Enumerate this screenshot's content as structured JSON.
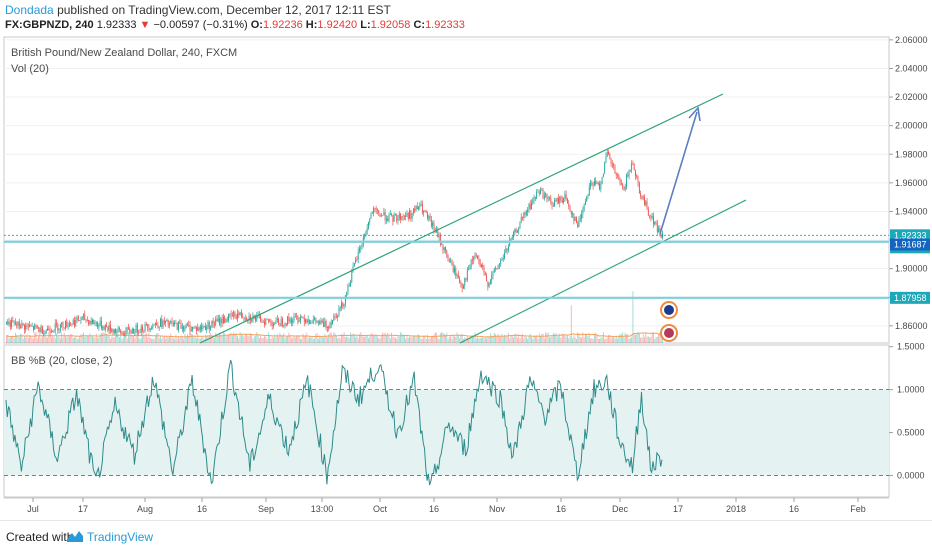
{
  "header": {
    "author": "Dondada",
    "published_text": "published on TradingView.com, December 12, 2017 12:11 EST",
    "symbol": "FX:GBPNZD, 240",
    "last": "1.92333",
    "change": "−0.00597 (−0.31%)",
    "o_label": "O:",
    "o_value": "1.92236",
    "h_label": "H:",
    "h_value": "1.92420",
    "l_label": "L:",
    "l_value": "1.92058",
    "c_label": "C:",
    "c_value": "1.92333"
  },
  "main_pane": {
    "title": "British Pound/New Zealand Dollar, 240, FXCM",
    "vol_label": "Vol (20)"
  },
  "indicator_pane": {
    "title": "BB %B (20, close, 2)"
  },
  "footer": {
    "created_with": "Created with",
    "brand": "TradingView"
  },
  "colors": {
    "up": "#26a69a",
    "down": "#ef5350",
    "channel": "#2ea37a",
    "hline": "#7fcfdc",
    "arrow": "#5b7fc2",
    "bb_line": "#2e8b8b",
    "bb_fill": "#e4f3f1",
    "tag": "#1ba8b8",
    "tag_alt": "#1565c0",
    "brand": "#2a9ad6"
  },
  "chart_data": [
    {
      "type": "candlestick",
      "title": "British Pound/New Zealand Dollar, 240, FXCM",
      "x_ticks": [
        "Jul",
        "17",
        "Aug",
        "16",
        "Sep",
        "13:00",
        "Oct",
        "16",
        "Nov",
        "16",
        "Dec",
        "17",
        "2018",
        "16",
        "Feb"
      ],
      "y_ticks": [
        "1.86000",
        "1.88000",
        "1.90000",
        "1.92000",
        "1.94000",
        "1.96000",
        "1.98000",
        "2.00000",
        "2.02000",
        "2.04000",
        "2.06000"
      ],
      "ylim": [
        1.848,
        2.062
      ],
      "price_tags": [
        "1.92333",
        "48:24",
        "1.91687",
        "1.87958"
      ],
      "horizontal_levels": [
        1.9188,
        1.8796
      ],
      "price_anchors": [
        [
          0,
          1.862
        ],
        [
          30,
          1.857
        ],
        [
          60,
          1.865
        ],
        [
          90,
          1.855
        ],
        [
          120,
          1.862
        ],
        [
          150,
          1.858
        ],
        [
          180,
          1.868
        ],
        [
          210,
          1.862
        ],
        [
          230,
          1.866
        ],
        [
          250,
          1.86
        ],
        [
          262,
          1.875
        ],
        [
          272,
          1.905
        ],
        [
          285,
          1.94
        ],
        [
          300,
          1.935
        ],
        [
          315,
          1.938
        ],
        [
          322,
          1.944
        ],
        [
          335,
          1.925
        ],
        [
          345,
          1.905
        ],
        [
          355,
          1.888
        ],
        [
          365,
          1.91
        ],
        [
          375,
          1.89
        ],
        [
          385,
          1.905
        ],
        [
          400,
          1.932
        ],
        [
          415,
          1.955
        ],
        [
          425,
          1.945
        ],
        [
          435,
          1.95
        ],
        [
          445,
          1.93
        ],
        [
          455,
          1.96
        ],
        [
          462,
          1.958
        ],
        [
          468,
          1.98
        ],
        [
          475,
          1.965
        ],
        [
          480,
          1.955
        ],
        [
          488,
          1.975
        ],
        [
          493,
          1.955
        ],
        [
          500,
          1.94
        ],
        [
          510,
          1.923
        ]
      ],
      "volume_spikes": [
        [
          440,
          2.4
        ],
        [
          488,
          3.3
        ]
      ],
      "event_icons": [
        "flag-icon",
        "flag-icon"
      ]
    },
    {
      "type": "line",
      "title": "BB %B (20, close, 2)",
      "y_ticks": [
        "0.0000",
        "0.5000",
        "1.0000",
        "1.5000"
      ],
      "ylim": [
        -0.25,
        1.52
      ],
      "dashed_levels": [
        0.0,
        1.0
      ],
      "anchors": [
        [
          0,
          0.85
        ],
        [
          12,
          0.1
        ],
        [
          25,
          1.05
        ],
        [
          40,
          0.2
        ],
        [
          55,
          0.95
        ],
        [
          70,
          -0.1
        ],
        [
          85,
          0.8
        ],
        [
          100,
          0.25
        ],
        [
          115,
          1.15
        ],
        [
          130,
          0.05
        ],
        [
          145,
          1.1
        ],
        [
          160,
          -0.1
        ],
        [
          175,
          1.3
        ],
        [
          190,
          0.1
        ],
        [
          205,
          0.9
        ],
        [
          220,
          0.3
        ],
        [
          235,
          1.1
        ],
        [
          250,
          0.0
        ],
        [
          262,
          1.2
        ],
        [
          275,
          0.9
        ],
        [
          290,
          1.3
        ],
        [
          305,
          0.5
        ],
        [
          318,
          1.1
        ],
        [
          330,
          -0.2
        ],
        [
          345,
          0.6
        ],
        [
          358,
          0.3
        ],
        [
          370,
          1.2
        ],
        [
          385,
          0.9
        ],
        [
          395,
          0.2
        ],
        [
          408,
          1.1
        ],
        [
          420,
          0.7
        ],
        [
          432,
          1.05
        ],
        [
          445,
          0.0
        ],
        [
          458,
          1.0
        ],
        [
          468,
          1.1
        ],
        [
          478,
          0.4
        ],
        [
          488,
          0.1
        ],
        [
          495,
          0.95
        ],
        [
          502,
          0.1
        ],
        [
          510,
          0.2
        ]
      ]
    }
  ]
}
